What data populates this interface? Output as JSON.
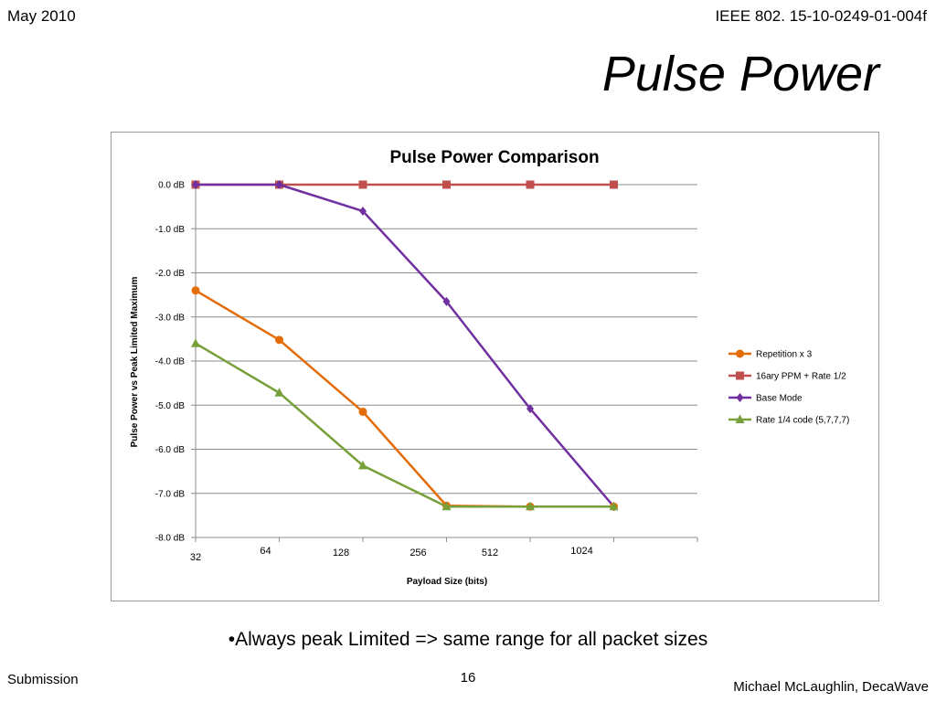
{
  "header": {
    "date": "May 2010",
    "doc_id": "IEEE 802. 15-10-0249-01-004f"
  },
  "slide_title": "Pulse Power",
  "bullet": "•Always peak Limited => same range for all packet sizes",
  "footer": {
    "left": "Submission",
    "page": "16",
    "author": "Michael McLaughlin, DecaWave"
  },
  "chart_data": {
    "type": "line",
    "title": "Pulse Power Comparison",
    "xlabel": "Payload Size  (bits)",
    "ylabel": "Pulse Power vs Peak Limited Maximum",
    "categories": [
      "32",
      "64",
      "128",
      "256",
      "512",
      "1024"
    ],
    "y_ticks": [
      "0.0 dB",
      "-1.0 dB",
      "-2.0 dB",
      "-3.0 dB",
      "-4.0 dB",
      "-5.0 dB",
      "-6.0 dB",
      "-7.0 dB",
      "-8.0 dB"
    ],
    "ylim": [
      -8,
      0
    ],
    "grid": true,
    "legend": "right",
    "series": [
      {
        "name": "Repetition x 3",
        "color": "#E36C09",
        "marker": "circle",
        "values": [
          -2.4,
          -3.52,
          -5.15,
          -7.28,
          -7.3,
          -7.3
        ]
      },
      {
        "name": "16ary PPM + Rate  1/2",
        "color": "#C0504D",
        "marker": "square",
        "values": [
          0,
          0,
          0,
          0,
          0,
          0
        ]
      },
      {
        "name": "Base Mode",
        "color": "#7030A0",
        "marker": "diamond",
        "values": [
          0,
          0,
          -0.6,
          -2.65,
          -5.08,
          -7.3
        ]
      },
      {
        "name": "Rate 1/4 code (5,7,7,7)",
        "color": "#77A03A",
        "marker": "triangle",
        "values": [
          -3.6,
          -4.72,
          -6.37,
          -7.3,
          -7.3,
          -7.3
        ]
      }
    ]
  }
}
